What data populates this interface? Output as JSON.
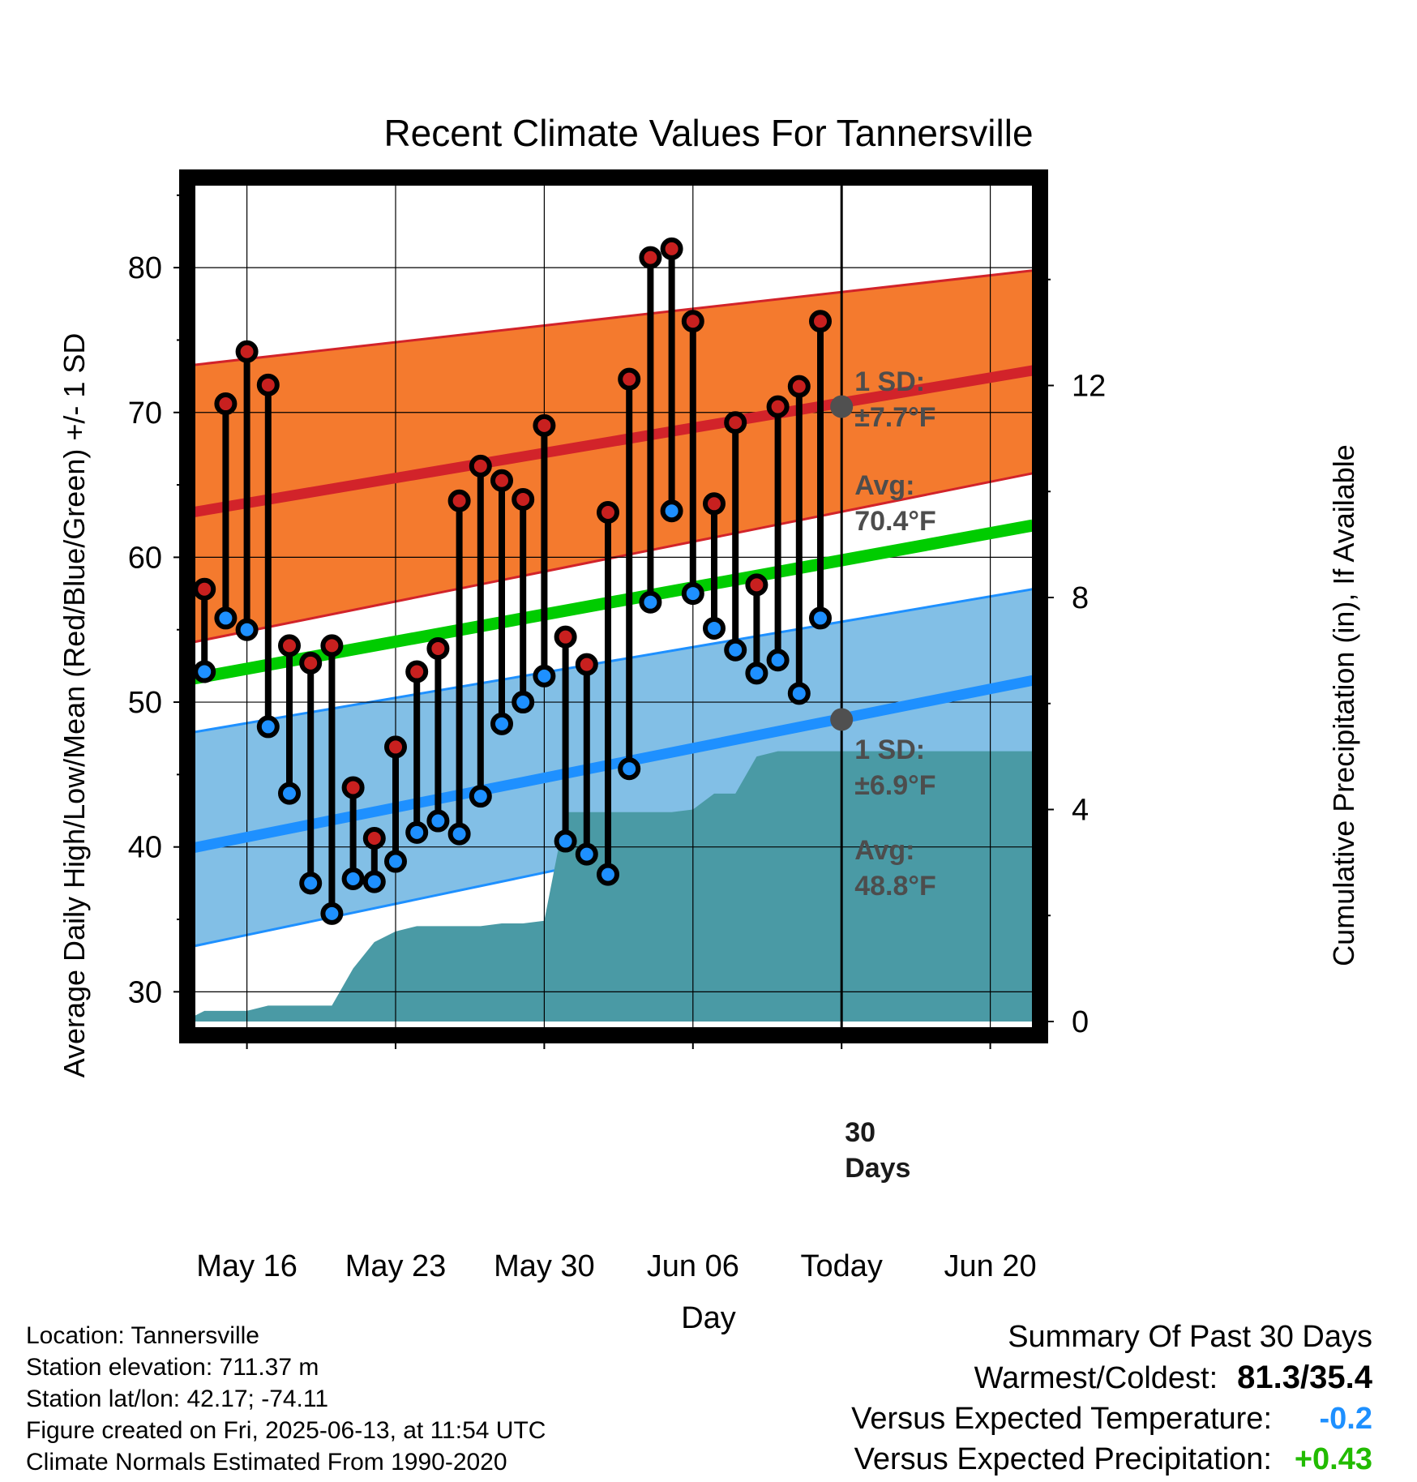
{
  "chart_data": {
    "type": "line",
    "title": "Recent Climate Values For Tannersville",
    "xlabel": "Day",
    "ylabel": "Average Daily High/Low/Mean (Red/Blue/Green) +/- 1 SD",
    "y2label": "Cumulative Precipitation (in), If Available",
    "ylim": [
      27.5,
      86.5
    ],
    "y2lim": [
      0,
      16
    ],
    "yticks": [
      "30",
      "40",
      "50",
      "60",
      "70",
      "80"
    ],
    "y2ticks": [
      "0",
      "4",
      "8",
      "12"
    ],
    "xlim": [
      "2025-05-13",
      "2025-06-22"
    ],
    "xticks": [
      {
        "date": "2025-05-16",
        "label": "May 16"
      },
      {
        "date": "2025-05-23",
        "label": "May 23"
      },
      {
        "date": "2025-05-30",
        "label": "May 30"
      },
      {
        "date": "2025-06-06",
        "label": "Jun 06"
      },
      {
        "date": "2025-06-13",
        "label": "Today"
      },
      {
        "date": "2025-06-20",
        "label": "Jun 20"
      }
    ],
    "today": "2025-06-13",
    "grid": true,
    "normals": {
      "start_date": "2025-05-13",
      "end_date": "2025-06-22",
      "high_avg": [
        63.0,
        72.9
      ],
      "high_sd_band": [
        [
          54.0,
          73.2
        ],
        [
          65.8,
          79.8
        ]
      ],
      "low_avg": [
        39.8,
        51.5
      ],
      "low_sd_band": [
        [
          33.0,
          47.8
        ],
        [
          45.3,
          57.8
        ]
      ],
      "mean_avg": [
        51.5,
        62.2
      ]
    },
    "series": [
      {
        "name": "High",
        "x": [
          "2025-05-14",
          "2025-05-15",
          "2025-05-16",
          "2025-05-17",
          "2025-05-18",
          "2025-05-19",
          "2025-05-20",
          "2025-05-21",
          "2025-05-22",
          "2025-05-23",
          "2025-05-24",
          "2025-05-25",
          "2025-05-26",
          "2025-05-27",
          "2025-05-28",
          "2025-05-29",
          "2025-05-30",
          "2025-05-31",
          "2025-06-01",
          "2025-06-02",
          "2025-06-03",
          "2025-06-04",
          "2025-06-05",
          "2025-06-06",
          "2025-06-07",
          "2025-06-08",
          "2025-06-09",
          "2025-06-10",
          "2025-06-11",
          "2025-06-12"
        ],
        "values": [
          57.8,
          70.6,
          74.2,
          71.9,
          53.9,
          52.7,
          53.9,
          44.1,
          40.6,
          46.9,
          52.1,
          53.7,
          63.9,
          66.3,
          65.3,
          64.0,
          69.1,
          54.5,
          52.6,
          63.1,
          72.3,
          80.7,
          81.3,
          76.3,
          63.7,
          69.3,
          58.1,
          70.4,
          71.8,
          76.3
        ]
      },
      {
        "name": "Low",
        "x": [
          "2025-05-14",
          "2025-05-15",
          "2025-05-16",
          "2025-05-17",
          "2025-05-18",
          "2025-05-19",
          "2025-05-20",
          "2025-05-21",
          "2025-05-22",
          "2025-05-23",
          "2025-05-24",
          "2025-05-25",
          "2025-05-26",
          "2025-05-27",
          "2025-05-28",
          "2025-05-29",
          "2025-05-30",
          "2025-05-31",
          "2025-06-01",
          "2025-06-02",
          "2025-06-03",
          "2025-06-04",
          "2025-06-05",
          "2025-06-06",
          "2025-06-07",
          "2025-06-08",
          "2025-06-09",
          "2025-06-10",
          "2025-06-11",
          "2025-06-12"
        ],
        "values": [
          52.1,
          55.8,
          55.0,
          48.3,
          43.7,
          37.5,
          35.4,
          37.8,
          37.6,
          39.0,
          41.0,
          41.8,
          40.9,
          43.5,
          48.5,
          50.0,
          51.8,
          40.4,
          39.5,
          38.1,
          45.4,
          56.9,
          63.2,
          57.5,
          55.1,
          53.6,
          52.0,
          52.9,
          50.6,
          55.8
        ]
      },
      {
        "name": "Cumulative Precipitation",
        "x": [
          "2025-05-13",
          "2025-05-14",
          "2025-05-15",
          "2025-05-16",
          "2025-05-17",
          "2025-05-18",
          "2025-05-19",
          "2025-05-20",
          "2025-05-21",
          "2025-05-22",
          "2025-05-23",
          "2025-05-24",
          "2025-05-25",
          "2025-05-26",
          "2025-05-27",
          "2025-05-28",
          "2025-05-29",
          "2025-05-30",
          "2025-05-31",
          "2025-06-01",
          "2025-06-02",
          "2025-06-03",
          "2025-06-04",
          "2025-06-05",
          "2025-06-06",
          "2025-06-07",
          "2025-06-08",
          "2025-06-09",
          "2025-06-10",
          "2025-06-11",
          "2025-06-12",
          "2025-06-13",
          "2025-06-22"
        ],
        "values": [
          0.0,
          0.2,
          0.2,
          0.2,
          0.3,
          0.3,
          0.3,
          0.3,
          1.0,
          1.5,
          1.7,
          1.8,
          1.8,
          1.8,
          1.8,
          1.85,
          1.85,
          1.9,
          3.95,
          3.95,
          3.95,
          3.95,
          3.95,
          3.95,
          4.0,
          4.3,
          4.3,
          5.0,
          5.1,
          5.1,
          5.1,
          5.1,
          5.1
        ]
      }
    ],
    "annotations": {
      "high_sd_label": "1 SD:",
      "high_sd_value": "±7.7°F",
      "high_avg_label": "Avg:",
      "high_avg_value": "70.4°F",
      "high_today": 70.4,
      "low_sd_label": "1 SD:",
      "low_sd_value": "±6.9°F",
      "low_avg_label": "Avg:",
      "low_avg_value": "48.8°F",
      "low_today": 48.8,
      "window_label_1": "30",
      "window_label_2": "Days"
    },
    "colors": {
      "high_band": "#f47a2e",
      "high_line": "#d2232a",
      "low_band": "#82bfe6",
      "low_line": "#1e90ff",
      "mean_line": "#00cc00",
      "precip": "#4a9aa5",
      "high_point": "#c8201f",
      "low_point": "#1e90ff",
      "today_dot": "#505050"
    }
  },
  "info": {
    "location": "Location: Tannersville",
    "elevation": "Station elevation: 711.37 m",
    "latlon": "Station lat/lon: 42.17; -74.11",
    "created": "Figure created on Fri, 2025-06-13, at 11:54 UTC",
    "normals": "Climate Normals Estimated From 1990-2020"
  },
  "summary": {
    "title": "Summary Of Past 30 Days",
    "warmest_label": "Warmest/Coldest:",
    "warmest_value": "81.3/35.4",
    "temp_label": "Versus Expected Temperature:",
    "temp_value": "-0.2",
    "temp_color": "#1e90ff",
    "precip_label": "Versus Expected Precipitation:",
    "precip_value": "+0.43",
    "precip_color": "#22bb00"
  }
}
